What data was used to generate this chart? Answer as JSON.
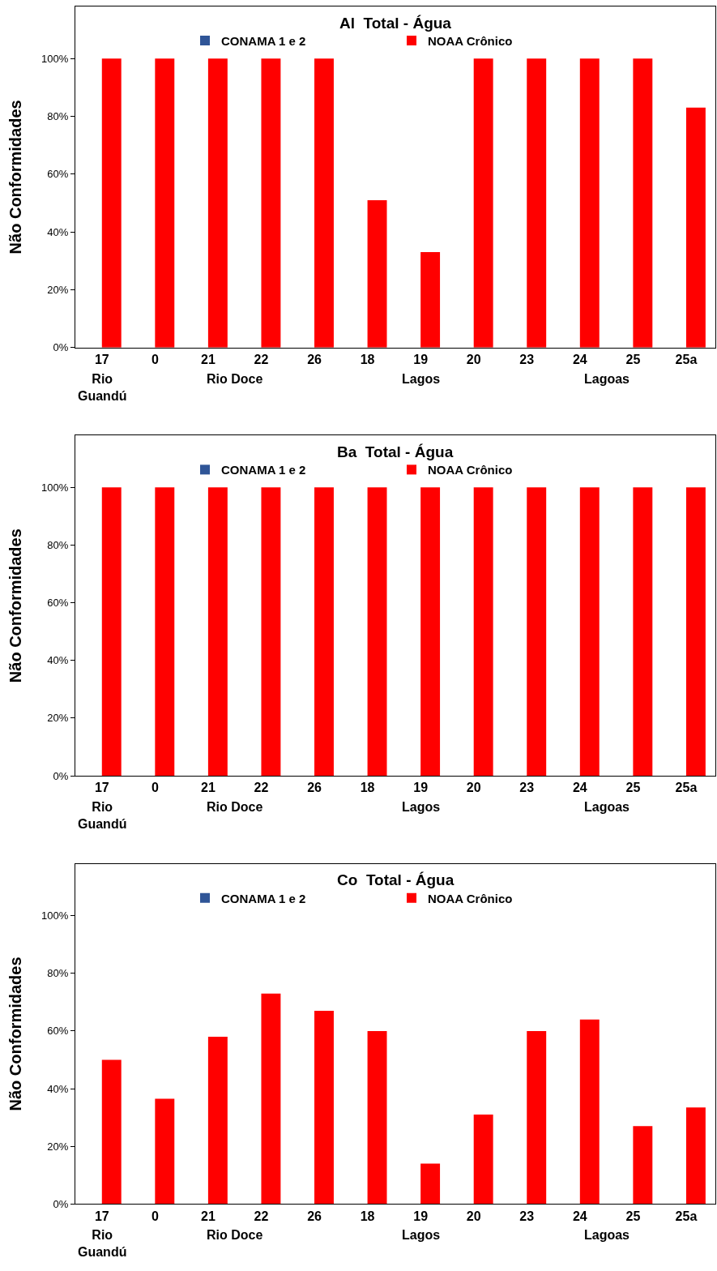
{
  "chart_data": [
    {
      "type": "bar",
      "title": "Al  Total - Água",
      "ylabel": "Não Conformidades",
      "categories": [
        "17",
        "0",
        "21",
        "22",
        "26",
        "18",
        "19",
        "20",
        "23",
        "24",
        "25",
        "25a"
      ],
      "series": [
        {
          "name": "CONAMA 1 e 2",
          "color": "#2f5597",
          "values": [
            0,
            0,
            0,
            0,
            0,
            0,
            0,
            0,
            0,
            0,
            0,
            0
          ]
        },
        {
          "name": "NOAA Crônico",
          "color": "#ff0000",
          "values": [
            100,
            100,
            100,
            100,
            100,
            51,
            33,
            100,
            100,
            100,
            100,
            83
          ]
        }
      ],
      "ylim": [
        0,
        118
      ],
      "yticks": [
        {
          "value": 0,
          "label": "0%"
        },
        {
          "value": 20,
          "label": "20%"
        },
        {
          "value": 40,
          "label": "40%"
        },
        {
          "value": 60,
          "label": "60%"
        },
        {
          "value": 80,
          "label": "80%"
        },
        {
          "value": 100,
          "label": "100%"
        }
      ],
      "grid": false,
      "legend": "top",
      "annotations": [
        "Rio\nGuandú",
        "Rio Doce",
        "Lagos",
        "Lagoas"
      ]
    },
    {
      "type": "bar",
      "title": "Ba  Total - Água",
      "ylabel": "Não Conformidades",
      "categories": [
        "17",
        "0",
        "21",
        "22",
        "26",
        "18",
        "19",
        "20",
        "23",
        "24",
        "25",
        "25a"
      ],
      "series": [
        {
          "name": "CONAMA 1 e 2",
          "color": "#2f5597",
          "values": [
            0,
            0,
            0,
            0,
            0,
            0,
            0,
            0,
            0,
            0,
            0,
            0
          ]
        },
        {
          "name": "NOAA Crônico",
          "color": "#ff0000",
          "values": [
            100,
            100,
            100,
            100,
            100,
            100,
            100,
            100,
            100,
            100,
            100,
            100
          ]
        }
      ],
      "ylim": [
        0,
        118
      ],
      "yticks": [
        {
          "value": 0,
          "label": "0%"
        },
        {
          "value": 20,
          "label": "20%"
        },
        {
          "value": 40,
          "label": "40%"
        },
        {
          "value": 60,
          "label": "60%"
        },
        {
          "value": 80,
          "label": "80%"
        },
        {
          "value": 100,
          "label": "100%"
        }
      ],
      "grid": false,
      "legend": "top",
      "annotations": [
        "Rio\nGuandú",
        "Rio Doce",
        "Lagos",
        "Lagoas"
      ]
    },
    {
      "type": "bar",
      "title": "Co  Total - Água",
      "ylabel": "Não Conformidades",
      "categories": [
        "17",
        "0",
        "21",
        "22",
        "26",
        "18",
        "19",
        "20",
        "23",
        "24",
        "25",
        "25a"
      ],
      "series": [
        {
          "name": "CONAMA 1 e 2",
          "color": "#2f5597",
          "values": [
            0,
            0,
            0,
            0,
            0,
            0,
            0,
            0,
            0,
            0,
            0,
            0
          ]
        },
        {
          "name": "NOAA Crônico",
          "color": "#ff0000",
          "values": [
            50,
            36.5,
            58,
            73,
            67,
            60,
            14,
            31,
            60,
            64,
            27,
            33.5
          ]
        }
      ],
      "ylim": [
        0,
        118
      ],
      "yticks": [
        {
          "value": 0,
          "label": "0%"
        },
        {
          "value": 20,
          "label": "20%"
        },
        {
          "value": 40,
          "label": "40%"
        },
        {
          "value": 60,
          "label": "60%"
        },
        {
          "value": 80,
          "label": "80%"
        },
        {
          "value": 100,
          "label": "100%"
        }
      ],
      "grid": false,
      "legend": "top",
      "annotations": [
        "Rio\nGuandú",
        "Rio Doce",
        "Lagos",
        "Lagoas"
      ]
    }
  ]
}
